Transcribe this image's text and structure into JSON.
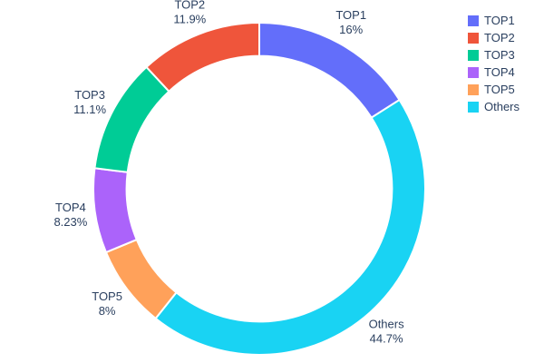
{
  "chart_data": {
    "type": "pie",
    "title": "",
    "hole": 0.8,
    "start_angle_deg": -90,
    "direction": "clockwise",
    "text_color": "#2a3f5f",
    "background_color": "#ffffff",
    "slice_border_color": "#ffffff",
    "items": [
      {
        "label": "TOP1",
        "value": 16,
        "pct_label": "16%",
        "color": "#636EFA"
      },
      {
        "label": "TOP2",
        "value": 11.9,
        "pct_label": "11.9%",
        "color": "#EF553B"
      },
      {
        "label": "TOP3",
        "value": 11.1,
        "pct_label": "11.1%",
        "color": "#00CC96"
      },
      {
        "label": "TOP4",
        "value": 8.23,
        "pct_label": "8.23%",
        "color": "#AB63FA"
      },
      {
        "label": "TOP5",
        "value": 8,
        "pct_label": "8%",
        "color": "#FFA15A"
      },
      {
        "label": "Others",
        "value": 44.7,
        "pct_label": "44.7%",
        "color": "#19D3F3"
      }
    ],
    "clockwise_index_order": [
      0,
      5,
      4,
      3,
      2,
      1
    ],
    "legend_position": "top-right",
    "legend_entries": [
      "TOP1",
      "TOP2",
      "TOP3",
      "TOP4",
      "TOP5",
      "Others"
    ]
  }
}
